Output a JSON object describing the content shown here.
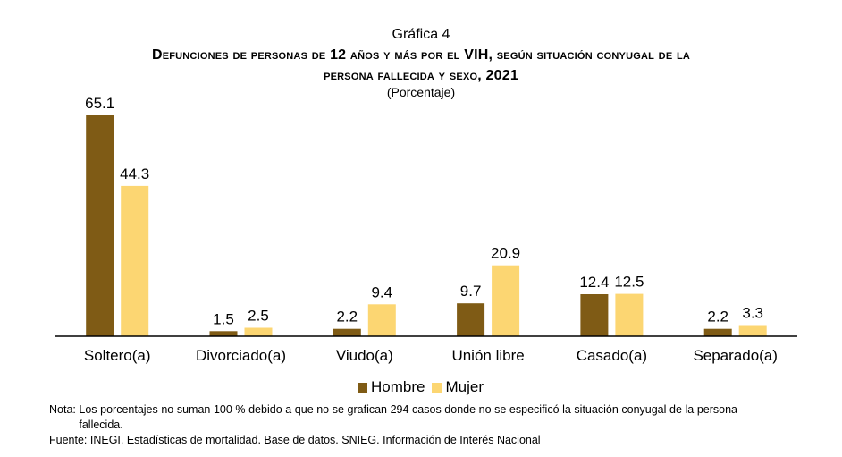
{
  "header": {
    "label": "Gráfica 4",
    "title_line1": "Defunciones de personas de 12 años y más por el VIH, según situación conyugal de la",
    "title_line2": "persona fallecida y sexo, 2021",
    "subtitle": "(Porcentaje)"
  },
  "chart_data": {
    "type": "bar",
    "categories": [
      "Soltero(a)",
      "Divorciado(a)",
      "Viudo(a)",
      "Unión libre",
      "Casado(a)",
      "Separado(a)"
    ],
    "series": [
      {
        "name": "Hombre",
        "values": [
          65.1,
          1.5,
          2.2,
          9.7,
          12.4,
          2.2
        ],
        "color": "#7f5b15"
      },
      {
        "name": "Mujer",
        "values": [
          44.3,
          2.5,
          9.4,
          20.9,
          12.5,
          3.3
        ],
        "color": "#fcd672"
      }
    ],
    "ylim": [
      0,
      65.1
    ],
    "grid": false,
    "legend_position": "bottom-center",
    "data_labels": true
  },
  "notes": {
    "nota_label": "Nota:",
    "nota_text": "Los porcentajes no suman 100 % debido a que no se grafican 294 casos donde no se especificó la situación conyugal de la persona fallecida.",
    "fuente": "Fuente: INEGI. Estadísticas de mortalidad. Base de datos. SNIEG. Información de Interés Nacional"
  }
}
